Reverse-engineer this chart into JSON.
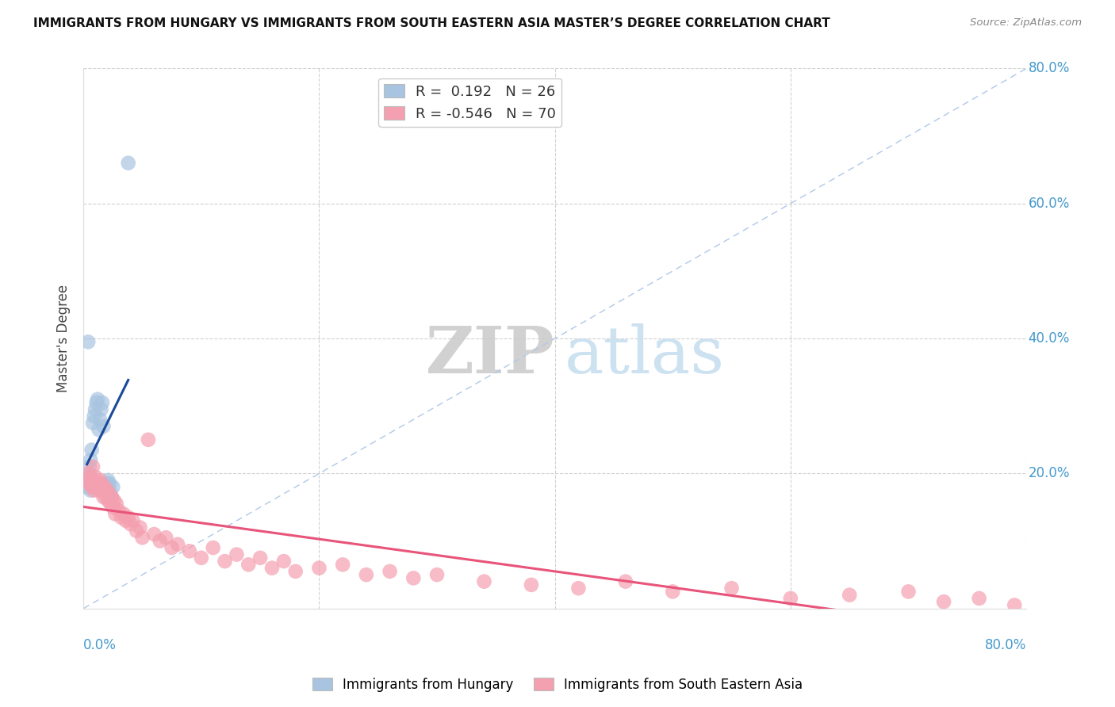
{
  "title": "IMMIGRANTS FROM HUNGARY VS IMMIGRANTS FROM SOUTH EASTERN ASIA MASTER’S DEGREE CORRELATION CHART",
  "source": "Source: ZipAtlas.com",
  "ylabel": "Master's Degree",
  "xlim": [
    0.0,
    0.8
  ],
  "ylim": [
    0.0,
    0.8
  ],
  "xticks": [
    0.0,
    0.2,
    0.4,
    0.6,
    0.8
  ],
  "yticks": [
    0.2,
    0.4,
    0.6,
    0.8
  ],
  "xticklabels_left": [
    "0.0%"
  ],
  "xticklabels_right": [
    "80.0%"
  ],
  "yticklabels": [
    "20.0%",
    "40.0%",
    "60.0%",
    "80.0%"
  ],
  "blue_R": 0.192,
  "blue_N": 26,
  "pink_R": -0.546,
  "pink_N": 70,
  "blue_color": "#a8c4e0",
  "pink_color": "#f4a0b0",
  "blue_line_color": "#1a4a9a",
  "pink_line_color": "#e8547a",
  "diagonal_color": "#b0c8e8",
  "watermark_zip": "ZIP",
  "watermark_atlas": "atlas",
  "blue_scatter_x": [
    0.003,
    0.005,
    0.006,
    0.007,
    0.008,
    0.009,
    0.01,
    0.011,
    0.012,
    0.013,
    0.014,
    0.015,
    0.016,
    0.017,
    0.018,
    0.019,
    0.02,
    0.021,
    0.022,
    0.024,
    0.025,
    0.003,
    0.004,
    0.006,
    0.022,
    0.038
  ],
  "blue_scatter_y": [
    0.195,
    0.21,
    0.22,
    0.235,
    0.275,
    0.285,
    0.295,
    0.305,
    0.31,
    0.265,
    0.28,
    0.295,
    0.305,
    0.27,
    0.18,
    0.175,
    0.185,
    0.19,
    0.175,
    0.165,
    0.18,
    0.18,
    0.395,
    0.175,
    0.185,
    0.66
  ],
  "pink_scatter_x": [
    0.003,
    0.004,
    0.005,
    0.006,
    0.007,
    0.008,
    0.009,
    0.01,
    0.011,
    0.012,
    0.013,
    0.014,
    0.015,
    0.016,
    0.017,
    0.018,
    0.019,
    0.02,
    0.021,
    0.022,
    0.023,
    0.024,
    0.025,
    0.026,
    0.027,
    0.028,
    0.03,
    0.032,
    0.034,
    0.036,
    0.038,
    0.04,
    0.042,
    0.045,
    0.048,
    0.05,
    0.055,
    0.06,
    0.065,
    0.07,
    0.075,
    0.08,
    0.09,
    0.1,
    0.11,
    0.12,
    0.13,
    0.14,
    0.15,
    0.16,
    0.17,
    0.18,
    0.2,
    0.22,
    0.24,
    0.26,
    0.28,
    0.3,
    0.34,
    0.38,
    0.42,
    0.46,
    0.5,
    0.55,
    0.6,
    0.65,
    0.7,
    0.73,
    0.76,
    0.79
  ],
  "pink_scatter_y": [
    0.19,
    0.2,
    0.185,
    0.195,
    0.18,
    0.21,
    0.175,
    0.195,
    0.18,
    0.185,
    0.175,
    0.19,
    0.185,
    0.175,
    0.165,
    0.18,
    0.165,
    0.175,
    0.16,
    0.17,
    0.155,
    0.165,
    0.15,
    0.16,
    0.14,
    0.155,
    0.145,
    0.135,
    0.14,
    0.13,
    0.135,
    0.125,
    0.13,
    0.115,
    0.12,
    0.105,
    0.25,
    0.11,
    0.1,
    0.105,
    0.09,
    0.095,
    0.085,
    0.075,
    0.09,
    0.07,
    0.08,
    0.065,
    0.075,
    0.06,
    0.07,
    0.055,
    0.06,
    0.065,
    0.05,
    0.055,
    0.045,
    0.05,
    0.04,
    0.035,
    0.03,
    0.04,
    0.025,
    0.03,
    0.015,
    0.02,
    0.025,
    0.01,
    0.015,
    0.005
  ]
}
